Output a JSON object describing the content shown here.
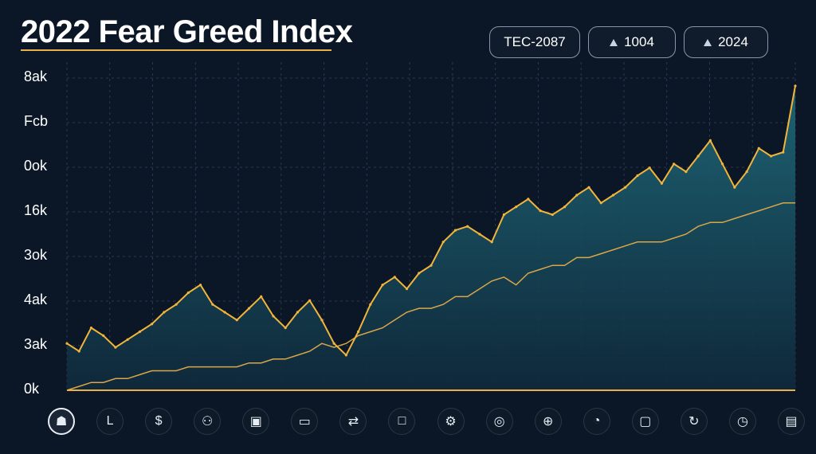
{
  "title": "2022 Fear Greed Index",
  "controls": [
    {
      "label": "TEC-2087",
      "icon": ""
    },
    {
      "label": "1004",
      "icon": "triangle-icon"
    },
    {
      "label": "2024",
      "icon": "triangle-icon"
    }
  ],
  "icon_bar": [
    {
      "icon": "person-icon",
      "glyph": "☗",
      "active": true
    },
    {
      "icon": "chart-line-icon",
      "glyph": "L",
      "active": false
    },
    {
      "icon": "dollar-icon",
      "glyph": "$",
      "active": false
    },
    {
      "icon": "people-icon",
      "glyph": "⚇",
      "active": false
    },
    {
      "icon": "monitor-icon",
      "glyph": "▣",
      "active": false
    },
    {
      "icon": "laptop-icon",
      "glyph": "▭",
      "active": false
    },
    {
      "icon": "exchange-icon",
      "glyph": "⇄",
      "active": false
    },
    {
      "icon": "screen-icon",
      "glyph": "□",
      "active": false
    },
    {
      "icon": "network-icon",
      "glyph": "⚙",
      "active": false
    },
    {
      "icon": "target-icon",
      "glyph": "◎",
      "active": false
    },
    {
      "icon": "globe-icon",
      "glyph": "⊕",
      "active": false
    },
    {
      "icon": "pie-icon",
      "glyph": "◔",
      "active": false
    },
    {
      "icon": "display-icon",
      "glyph": "▢",
      "active": false
    },
    {
      "icon": "refresh-icon",
      "glyph": "↻",
      "active": false
    },
    {
      "icon": "clock-icon",
      "glyph": "◷",
      "active": false
    },
    {
      "icon": "device-icon",
      "glyph": "▤",
      "active": false
    }
  ],
  "colors": {
    "background": "#0b1626",
    "price_line": "#f2b53a",
    "trend_line": "#d9a648",
    "area_top": "#1f6a7a",
    "area_bottom": "#0f2a3c",
    "grid": "#2a3a4e"
  },
  "chart_data": {
    "type": "area",
    "title": "2022 Fear Greed Index",
    "xlabel": "",
    "ylabel": "",
    "y_tick_labels": [
      "8ak",
      "Fcb",
      "0ok",
      "16k",
      "3ok",
      "4ak",
      "3ak",
      "0k"
    ],
    "grid": true,
    "ylim": [
      0,
      80
    ],
    "x": [
      0,
      1,
      2,
      3,
      4,
      5,
      6,
      7,
      8,
      9,
      10,
      11,
      12,
      13,
      14,
      15,
      16,
      17,
      18,
      19,
      20,
      21,
      22,
      23,
      24,
      25,
      26,
      27,
      28,
      29,
      30,
      31,
      32,
      33,
      34,
      35,
      36,
      37,
      38,
      39,
      40,
      41,
      42,
      43,
      44,
      45,
      46,
      47,
      48,
      49,
      50,
      51,
      52,
      53,
      54,
      55,
      56,
      57,
      58,
      59,
      60
    ],
    "series": [
      {
        "values": [
          12,
          10,
          16,
          14,
          11,
          13,
          15,
          17,
          20,
          22,
          25,
          27,
          22,
          20,
          18,
          21,
          24,
          19,
          16,
          20,
          23,
          18,
          12,
          9,
          15,
          22,
          27,
          29,
          26,
          30,
          32,
          38,
          41,
          42,
          40,
          38,
          45,
          47,
          49,
          46,
          45,
          47,
          50,
          52,
          48,
          50,
          52,
          55,
          57,
          53,
          58,
          56,
          60,
          64,
          58,
          52,
          56,
          62,
          60,
          61,
          78
        ]
      },
      {
        "values": [
          0,
          1,
          2,
          2,
          3,
          3,
          4,
          5,
          5,
          5,
          6,
          6,
          6,
          6,
          6,
          7,
          7,
          8,
          8,
          9,
          10,
          12,
          11,
          12,
          14,
          15,
          16,
          18,
          20,
          21,
          21,
          22,
          24,
          24,
          26,
          28,
          29,
          27,
          30,
          31,
          32,
          32,
          34,
          34,
          35,
          36,
          37,
          38,
          38,
          38,
          39,
          40,
          42,
          43,
          43,
          44,
          45,
          46,
          47,
          48,
          48
        ]
      }
    ]
  }
}
